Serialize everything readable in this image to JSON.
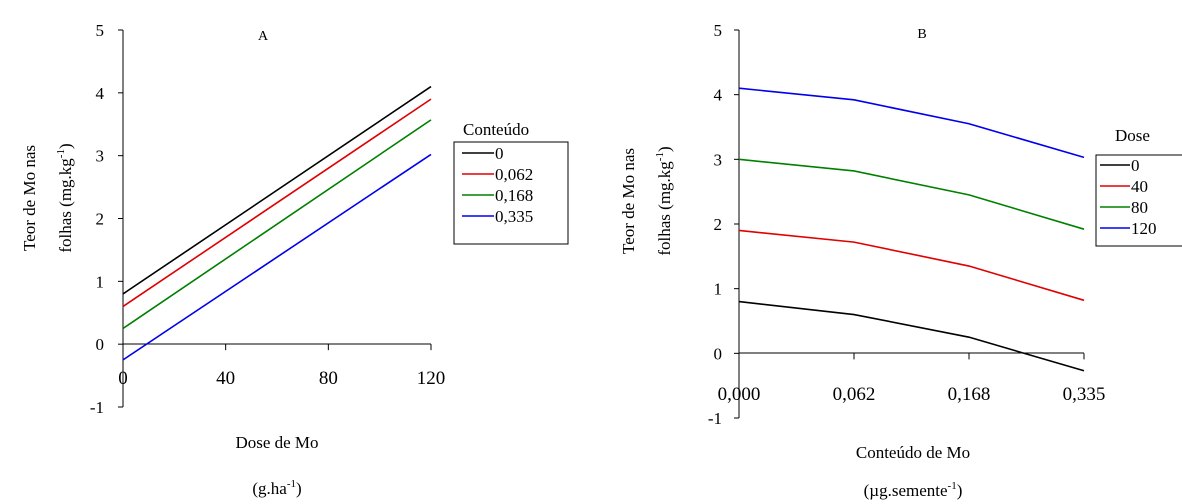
{
  "chart_data": [
    {
      "panel": "A",
      "type": "line",
      "title": "A",
      "xlabel": "Dose de Mo",
      "xlabel_unit_base": "(g.ha",
      "xlabel_unit_sup": "-1",
      "xlabel_unit_end": ")",
      "ylabel_line1": "Teor de Mo nas",
      "ylabel_line2_base": "folhas (mg.kg",
      "ylabel_line2_sup": "-1",
      "ylabel_line2_end": ")",
      "x": [
        0,
        120
      ],
      "x_ticks": [
        0,
        40,
        80,
        120
      ],
      "x_tick_labels": [
        "0",
        "40",
        "80",
        "120"
      ],
      "y_ticks": [
        -1,
        0,
        1,
        2,
        3,
        4,
        5
      ],
      "y_tick_labels": [
        "-1",
        "0",
        "1",
        "2",
        "3",
        "4",
        "5"
      ],
      "xlim": [
        0,
        120
      ],
      "ylim": [
        -1,
        5
      ],
      "legend_title": "Conteúdo",
      "legend_position": "right",
      "series": [
        {
          "name": "0",
          "color": "#000000",
          "values": [
            0.8,
            4.1
          ]
        },
        {
          "name": "0,062",
          "color": "#e00000",
          "values": [
            0.6,
            3.9
          ]
        },
        {
          "name": "0,168",
          "color": "#008000",
          "values": [
            0.25,
            3.57
          ]
        },
        {
          "name": "0,335",
          "color": "#0000ee",
          "values": [
            -0.25,
            3.02
          ]
        }
      ]
    },
    {
      "panel": "B",
      "type": "line",
      "title": "B",
      "xlabel": "Conteúdo de Mo",
      "xlabel_unit_base": "(µg.semente",
      "xlabel_unit_sup": "-1",
      "xlabel_unit_end": ")",
      "ylabel_line1": "Teor de Mo nas",
      "ylabel_line2_base": "folhas (mg.kg",
      "ylabel_line2_sup": "-1",
      "ylabel_line2_end": ")",
      "categories": [
        "0,000",
        "0,062",
        "0,168",
        "0,335"
      ],
      "y_ticks": [
        -1,
        0,
        1,
        2,
        3,
        4,
        5
      ],
      "y_tick_labels": [
        "-1",
        "0",
        "1",
        "2",
        "3",
        "4",
        "5"
      ],
      "ylim": [
        -1,
        5
      ],
      "legend_title": "Dose",
      "legend_position": "right",
      "series": [
        {
          "name": "0",
          "color": "#000000",
          "values": [
            0.8,
            0.6,
            0.25,
            -0.27
          ]
        },
        {
          "name": "40",
          "color": "#e00000",
          "values": [
            1.9,
            1.72,
            1.35,
            0.82
          ]
        },
        {
          "name": "80",
          "color": "#008000",
          "values": [
            3.0,
            2.82,
            2.45,
            1.92
          ]
        },
        {
          "name": "120",
          "color": "#0000ee",
          "values": [
            4.1,
            3.92,
            3.55,
            3.03
          ]
        }
      ]
    }
  ]
}
